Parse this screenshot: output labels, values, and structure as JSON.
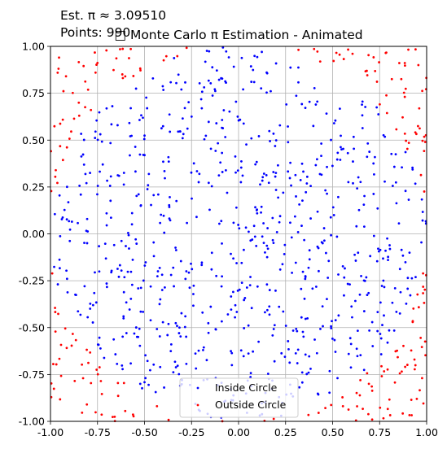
{
  "chart_data": {
    "type": "scatter",
    "title": "□ Monte Carlo π Estimation - Animated",
    "annotations": {
      "estimate": "Est. π ≈ 3.09510",
      "points": "Points: 990"
    },
    "xlim": [
      -1.0,
      1.0
    ],
    "ylim": [
      -1.0,
      1.0
    ],
    "xticks": [
      "-1.00",
      "-0.75",
      "-0.50",
      "-0.25",
      "0.00",
      "0.25",
      "0.50",
      "0.75",
      "1.00"
    ],
    "yticks": [
      "-1.00",
      "-0.75",
      "-0.50",
      "-0.25",
      "0.00",
      "0.25",
      "0.50",
      "0.75",
      "1.00"
    ],
    "grid": true,
    "legend_position": "bottom-center",
    "point_count": 990,
    "sampling": "uniform random points in the square [-1, 1] x [-1, 1]",
    "series": [
      {
        "name": "Inside Circle",
        "color": "#0000ff",
        "rule": "x^2 + y^2 <= 1"
      },
      {
        "name": "Outside Circle",
        "color": "#ff0000",
        "rule": "x^2 + y^2 > 1"
      }
    ]
  }
}
